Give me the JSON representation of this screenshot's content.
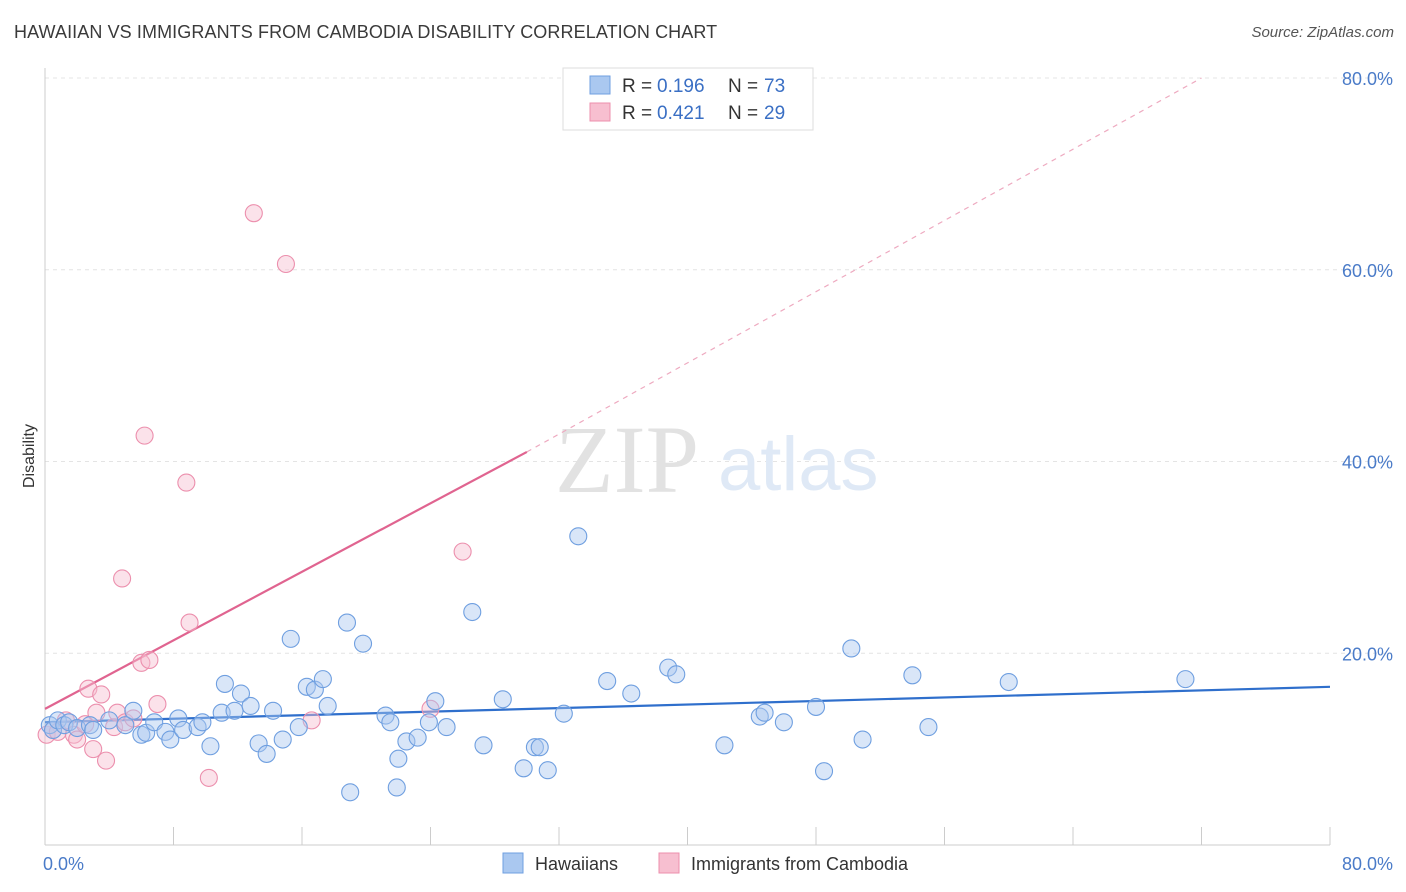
{
  "title": "HAWAIIAN VS IMMIGRANTS FROM CAMBODIA DISABILITY CORRELATION CHART",
  "source": "Source: ZipAtlas.com",
  "watermark": {
    "zip": "ZIP",
    "atlas": "atlas"
  },
  "legend": {
    "rows": [
      {
        "r_label": "R = ",
        "r_value": "0.196",
        "n_label": "N = ",
        "n_value": "73",
        "fill": "#aac8f0",
        "stroke": "#6f9fe0"
      },
      {
        "r_label": "R = ",
        "r_value": "0.421",
        "n_label": "N = ",
        "n_value": "29",
        "fill": "#f7bfd0",
        "stroke": "#ec8fad"
      }
    ]
  },
  "bottom_legend": [
    {
      "label": "Hawaiians",
      "fill": "#aac8f0",
      "stroke": "#6f9fe0"
    },
    {
      "label": "Immigrants from Cambodia",
      "fill": "#f7bfd0",
      "stroke": "#ec8fad"
    }
  ],
  "chart_data": {
    "type": "scatter",
    "title": "HAWAIIAN VS IMMIGRANTS FROM CAMBODIA DISABILITY CORRELATION CHART",
    "xlabel": "",
    "ylabel": "Disability",
    "xlim": [
      0,
      80
    ],
    "ylim": [
      0,
      80
    ],
    "x_tick_labels": [
      "0.0%",
      "80.0%"
    ],
    "y_tick_labels": [
      "20.0%",
      "40.0%",
      "60.0%",
      "80.0%"
    ],
    "y_ticks": [
      20,
      40,
      60,
      80
    ],
    "grid": "horizontal dashed",
    "legend_position": "top-center",
    "series": [
      {
        "name": "Hawaiians",
        "color": "#6f9fe0",
        "line_color": "#2f6fcc",
        "trend": {
          "x0": 0,
          "y0": 12.8,
          "x1": 80,
          "y1": 16.5
        },
        "points": [
          [
            0.3,
            12.5
          ],
          [
            0.5,
            12.0
          ],
          [
            0.8,
            13.0
          ],
          [
            1.2,
            12.5
          ],
          [
            1.5,
            12.8
          ],
          [
            2.0,
            12.2
          ],
          [
            2.8,
            12.5
          ],
          [
            3.0,
            12.0
          ],
          [
            4.0,
            13.0
          ],
          [
            5.0,
            12.5
          ],
          [
            5.5,
            14.0
          ],
          [
            6.0,
            11.5
          ],
          [
            6.3,
            11.7
          ],
          [
            6.8,
            12.8
          ],
          [
            7.5,
            11.8
          ],
          [
            7.8,
            11.0
          ],
          [
            8.3,
            13.2
          ],
          [
            8.6,
            12.0
          ],
          [
            9.5,
            12.3
          ],
          [
            9.8,
            12.8
          ],
          [
            10.3,
            10.3
          ],
          [
            11.0,
            13.8
          ],
          [
            11.2,
            16.8
          ],
          [
            11.8,
            14.0
          ],
          [
            12.2,
            15.8
          ],
          [
            12.8,
            14.5
          ],
          [
            13.3,
            10.6
          ],
          [
            13.8,
            9.5
          ],
          [
            14.2,
            14.0
          ],
          [
            14.8,
            11.0
          ],
          [
            15.3,
            21.5
          ],
          [
            15.8,
            12.3
          ],
          [
            16.3,
            16.5
          ],
          [
            16.8,
            16.2
          ],
          [
            17.3,
            17.3
          ],
          [
            17.6,
            14.5
          ],
          [
            18.8,
            23.2
          ],
          [
            19.0,
            5.5
          ],
          [
            19.8,
            21.0
          ],
          [
            21.2,
            13.5
          ],
          [
            21.5,
            12.8
          ],
          [
            21.9,
            6.0
          ],
          [
            22.0,
            9.0
          ],
          [
            22.5,
            10.8
          ],
          [
            23.2,
            11.2
          ],
          [
            23.9,
            12.8
          ],
          [
            24.3,
            15.0
          ],
          [
            25.0,
            12.3
          ],
          [
            26.6,
            24.3
          ],
          [
            27.3,
            10.4
          ],
          [
            28.5,
            15.2
          ],
          [
            29.8,
            8.0
          ],
          [
            30.5,
            10.2
          ],
          [
            30.8,
            10.2
          ],
          [
            31.3,
            7.8
          ],
          [
            32.3,
            13.7
          ],
          [
            33.2,
            32.2
          ],
          [
            35.0,
            17.1
          ],
          [
            36.5,
            15.8
          ],
          [
            38.8,
            18.5
          ],
          [
            39.3,
            17.8
          ],
          [
            42.3,
            10.4
          ],
          [
            44.5,
            13.4
          ],
          [
            44.8,
            13.8
          ],
          [
            46.0,
            12.8
          ],
          [
            48.0,
            14.4
          ],
          [
            48.5,
            7.7
          ],
          [
            50.2,
            20.5
          ],
          [
            50.9,
            11.0
          ],
          [
            54.0,
            17.7
          ],
          [
            55.0,
            12.3
          ],
          [
            60.0,
            17.0
          ],
          [
            71.0,
            17.3
          ]
        ]
      },
      {
        "name": "Immigrants from Cambodia",
        "color": "#ec8fad",
        "line_color": "#e06490",
        "trend": {
          "x0": 0,
          "y0": 14.2,
          "x1": 30,
          "y1": 41.0
        },
        "trend_extension": {
          "x0": 30,
          "y0": 41.0,
          "x1": 72,
          "y1": 80.0
        },
        "points": [
          [
            0.1,
            11.5
          ],
          [
            0.5,
            12.0
          ],
          [
            0.8,
            11.8
          ],
          [
            1.3,
            13.0
          ],
          [
            1.8,
            11.5
          ],
          [
            2.0,
            11.0
          ],
          [
            2.5,
            12.6
          ],
          [
            2.7,
            16.3
          ],
          [
            3.0,
            10.0
          ],
          [
            3.2,
            13.8
          ],
          [
            3.5,
            15.7
          ],
          [
            3.8,
            8.8
          ],
          [
            4.3,
            12.3
          ],
          [
            4.5,
            13.8
          ],
          [
            4.8,
            27.8
          ],
          [
            5.0,
            12.8
          ],
          [
            5.5,
            13.2
          ],
          [
            6.0,
            19.0
          ],
          [
            6.2,
            42.7
          ],
          [
            6.5,
            19.3
          ],
          [
            7.0,
            14.7
          ],
          [
            8.8,
            37.8
          ],
          [
            9.0,
            23.2
          ],
          [
            10.2,
            7.0
          ],
          [
            13.0,
            65.9
          ],
          [
            15.0,
            60.6
          ],
          [
            16.6,
            13.0
          ],
          [
            24.0,
            14.2
          ],
          [
            26.0,
            30.6
          ]
        ]
      }
    ]
  }
}
